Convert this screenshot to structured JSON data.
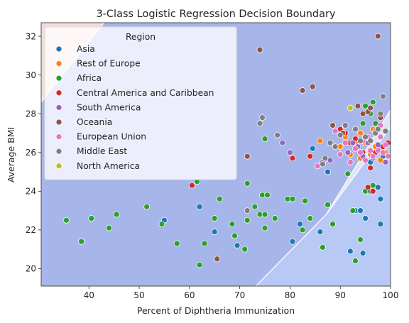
{
  "chart_data": {
    "type": "scatter",
    "title": "3-Class Logistic Regression Decision Boundary",
    "xlabel": "Percent of Diphtheria Immunization",
    "ylabel": "Average BMI",
    "xlim": [
      30.5,
      100
    ],
    "ylim": [
      19.1,
      32.7
    ],
    "xticks": [
      40,
      50,
      60,
      70,
      80,
      90,
      100
    ],
    "yticks": [
      20,
      22,
      24,
      26,
      28,
      30,
      32
    ],
    "legend_title": "Region",
    "legend_position": "upper-left",
    "regions": [
      {
        "class": "top-left",
        "color": "#f3ddd8",
        "polygon": [
          [
            30.5,
            32.7
          ],
          [
            43.0,
            32.7
          ],
          [
            30.5,
            28.6
          ]
        ]
      },
      {
        "class": "middle",
        "color": "#a7b6ea",
        "polygon": [
          [
            30.5,
            28.6
          ],
          [
            43.0,
            32.7
          ],
          [
            100,
            32.7
          ],
          [
            100,
            28.2
          ],
          [
            87.2,
            22.8
          ],
          [
            73.2,
            19.1
          ],
          [
            30.5,
            19.1
          ]
        ]
      },
      {
        "class": "middle-ribbon",
        "color": "#dfe5f4",
        "polygon": [
          [
            87.2,
            22.8
          ],
          [
            100,
            28.2
          ],
          [
            100,
            27.3
          ]
        ]
      },
      {
        "class": "bottom-right",
        "color": "#b9c9f5",
        "polygon": [
          [
            73.2,
            19.1
          ],
          [
            87.2,
            22.8
          ],
          [
            100,
            27.3
          ],
          [
            100,
            19.1
          ]
        ]
      }
    ],
    "series": [
      {
        "name": "Asia",
        "color": "#1f77b4",
        "points": [
          [
            55,
            22.5
          ],
          [
            62,
            23.2
          ],
          [
            65,
            21.9
          ],
          [
            69.5,
            21.2
          ],
          [
            80.5,
            21.4
          ],
          [
            82,
            22.3
          ],
          [
            84,
            22.6
          ],
          [
            86,
            21.9
          ],
          [
            84.5,
            26.2
          ],
          [
            87.5,
            25.0
          ],
          [
            92,
            20.9
          ],
          [
            93,
            23.0
          ],
          [
            94,
            23.0
          ],
          [
            94.5,
            20.8
          ],
          [
            95,
            22.6
          ],
          [
            96,
            25.5
          ],
          [
            97.5,
            24.2
          ],
          [
            98,
            23.6
          ],
          [
            98,
            22.3
          ],
          [
            98.5,
            25.8
          ]
        ]
      },
      {
        "name": "Rest of Europe",
        "color": "#ff7f0e",
        "points": [
          [
            86,
            26.6
          ],
          [
            90,
            26.3
          ],
          [
            91,
            26.8
          ],
          [
            92,
            25.9
          ],
          [
            93,
            26.5
          ],
          [
            94,
            25.7
          ],
          [
            95,
            26.5
          ],
          [
            96,
            25.9
          ],
          [
            97,
            26.3
          ],
          [
            98,
            25.6
          ],
          [
            99,
            26.0
          ],
          [
            94,
            27.0
          ],
          [
            96.5,
            27.2
          ]
        ]
      },
      {
        "name": "Africa",
        "color": "#2ca02c",
        "points": [
          [
            35.5,
            22.5
          ],
          [
            38.5,
            21.4
          ],
          [
            40.5,
            22.6
          ],
          [
            44,
            22.1
          ],
          [
            45.5,
            22.8
          ],
          [
            51.5,
            23.2
          ],
          [
            54.5,
            22.3
          ],
          [
            57.5,
            21.3
          ],
          [
            61.5,
            24.5
          ],
          [
            62,
            20.2
          ],
          [
            63,
            21.3
          ],
          [
            65,
            22.6
          ],
          [
            66,
            23.6
          ],
          [
            68.5,
            22.3
          ],
          [
            69,
            21.7
          ],
          [
            71,
            21.0
          ],
          [
            71.5,
            22.5
          ],
          [
            71.5,
            24.4
          ],
          [
            73,
            23.2
          ],
          [
            74,
            22.8
          ],
          [
            74.5,
            23.8
          ],
          [
            75,
            22.1
          ],
          [
            75,
            22.8
          ],
          [
            75.5,
            23.8
          ],
          [
            77,
            22.6
          ],
          [
            79.5,
            23.6
          ],
          [
            80.5,
            23.6
          ],
          [
            82.5,
            22.0
          ],
          [
            83,
            23.5
          ],
          [
            84,
            22.6
          ],
          [
            86.5,
            21.1
          ],
          [
            87.5,
            23.3
          ],
          [
            88.5,
            22.3
          ],
          [
            92.5,
            23.0
          ],
          [
            93,
            20.4
          ],
          [
            94,
            21.5
          ],
          [
            95,
            24.0
          ],
          [
            96,
            24.0
          ],
          [
            96.5,
            24.3
          ],
          [
            92,
            28.3
          ],
          [
            94.5,
            27.5
          ],
          [
            95,
            28.4
          ],
          [
            96,
            28.0
          ],
          [
            96.5,
            28.6
          ],
          [
            97,
            27.5
          ],
          [
            98,
            26.2
          ],
          [
            99,
            25.5
          ],
          [
            91.5,
            24.9
          ],
          [
            75,
            26.7
          ]
        ]
      },
      {
        "name": "Central America and Caribbean",
        "color": "#d62728",
        "points": [
          [
            60.5,
            24.3
          ],
          [
            80.5,
            25.7
          ],
          [
            84,
            25.8
          ],
          [
            90,
            27.2
          ],
          [
            91,
            27.0
          ],
          [
            92,
            26.5
          ],
          [
            93,
            26.7
          ],
          [
            94.5,
            26.0
          ],
          [
            95.5,
            24.2
          ],
          [
            96,
            25.2
          ],
          [
            97,
            26.0
          ],
          [
            98.5,
            26.3
          ],
          [
            99.5,
            26.5
          ],
          [
            96.5,
            24.0
          ]
        ]
      },
      {
        "name": "South America",
        "color": "#9467bd",
        "points": [
          [
            78.5,
            26.5
          ],
          [
            80,
            26.0
          ],
          [
            86.5,
            25.5
          ],
          [
            88,
            25.6
          ],
          [
            91.5,
            26.0
          ],
          [
            92.5,
            26.5
          ],
          [
            93.5,
            26.3
          ],
          [
            94.5,
            25.8
          ],
          [
            95.5,
            26.5
          ],
          [
            96.5,
            25.7
          ],
          [
            97.5,
            26.4
          ],
          [
            98.5,
            26.0
          ],
          [
            99,
            25.5
          ]
        ]
      },
      {
        "name": "Oceania",
        "color": "#8c564b",
        "points": [
          [
            65.5,
            20.5
          ],
          [
            71.5,
            25.8
          ],
          [
            74,
            31.3
          ],
          [
            82.5,
            29.2
          ],
          [
            84.5,
            29.4
          ],
          [
            88.5,
            27.4
          ],
          [
            90.5,
            27.0
          ],
          [
            93.5,
            28.4
          ],
          [
            94.5,
            28.0
          ],
          [
            95.5,
            28.1
          ],
          [
            96,
            28.3
          ],
          [
            97.5,
            32.0
          ],
          [
            98,
            27.8
          ]
        ]
      },
      {
        "name": "European Union",
        "color": "#e377c2",
        "points": [
          [
            85.5,
            25.3
          ],
          [
            89,
            27.1
          ],
          [
            90,
            25.9
          ],
          [
            91,
            26.5
          ],
          [
            92,
            25.5
          ],
          [
            93,
            26.2
          ],
          [
            94,
            26.0
          ],
          [
            94.5,
            26.6
          ],
          [
            95,
            25.6
          ],
          [
            95.5,
            26.8
          ],
          [
            96,
            26.1
          ],
          [
            96.5,
            25.8
          ],
          [
            97,
            27.1
          ],
          [
            97.5,
            26.1
          ],
          [
            98,
            26.8
          ],
          [
            98.5,
            26.0
          ],
          [
            99,
            26.4
          ],
          [
            99.5,
            25.8
          ],
          [
            98,
            27.4
          ]
        ]
      },
      {
        "name": "Middle East",
        "color": "#7f7f7f",
        "points": [
          [
            71.5,
            23.0
          ],
          [
            74,
            27.5
          ],
          [
            74.5,
            27.8
          ],
          [
            77.5,
            26.9
          ],
          [
            86.5,
            25.4
          ],
          [
            87,
            25.7
          ],
          [
            88,
            26.5
          ],
          [
            89,
            26.3
          ],
          [
            90,
            26.9
          ],
          [
            91,
            27.4
          ],
          [
            93,
            27.2
          ],
          [
            94,
            26.6
          ],
          [
            95,
            26.8
          ],
          [
            96,
            26.6
          ],
          [
            97,
            27.0
          ],
          [
            97.5,
            27.2
          ],
          [
            98,
            28.0
          ],
          [
            98.5,
            28.9
          ],
          [
            99,
            27.1
          ]
        ]
      },
      {
        "name": "North America",
        "color": "#bcbd22",
        "points": [
          [
            92,
            28.3
          ]
        ]
      }
    ]
  }
}
